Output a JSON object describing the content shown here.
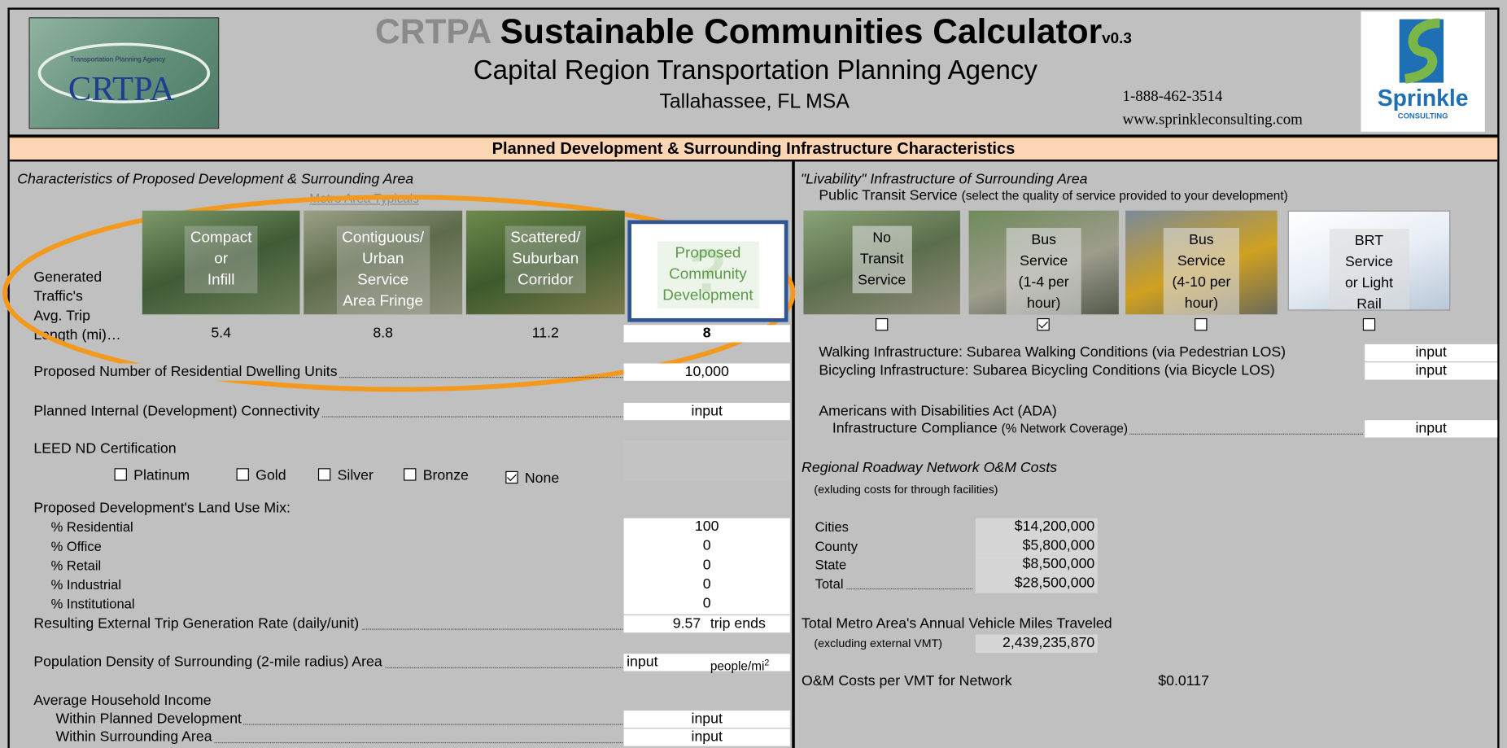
{
  "header": {
    "brand": "CRTPA",
    "title": "Sustainable Communities Calculator",
    "version": "v0.3",
    "agency": "Capital Region Transportation Planning Agency",
    "location": "Tallahassee, FL MSA",
    "phone": "1-888-462-3514",
    "website": "www.sprinkleconsulting.com",
    "logo_left": "CRTPA",
    "logo_left_sub": "Transportation Planning Agency",
    "logo_right": "Sprinkle",
    "logo_right_sub": "CONSULTING"
  },
  "section_title": "Planned Development & Surrounding Infrastructure Characteristics",
  "left": {
    "heading": "Characteristics of Proposed Development & Surrounding Area",
    "metro_label": "Metro Area Typicals",
    "trip_label": "Generated\nTraffic's\nAvg. Trip\nLength (mi)…",
    "scenarios": [
      {
        "label": "Compact\nor\nInfill",
        "value": "5.4"
      },
      {
        "label": "Contiguous/\nUrban Service\nArea Fringe",
        "value": "8.8"
      },
      {
        "label": "Scattered/\nSuburban\nCorridor",
        "value": "11.2"
      },
      {
        "label": "Proposed\nCommunity\nDevelopment",
        "value": "8",
        "icon": "?"
      }
    ],
    "dwelling": {
      "label": "Proposed Number of Residential Dwelling Units",
      "value": "10,000"
    },
    "connectivity": {
      "label": "Planned Internal (Development) Connectivity",
      "value": "input"
    },
    "leed": {
      "label": "LEED ND Certification",
      "options": [
        {
          "label": "Platinum",
          "checked": false
        },
        {
          "label": "Gold",
          "checked": false
        },
        {
          "label": "Silver",
          "checked": false
        },
        {
          "label": "Bronze",
          "checked": false
        },
        {
          "label": "None",
          "checked": true
        }
      ]
    },
    "land_use": {
      "label": "Proposed Development's Land Use Mix:",
      "items": [
        {
          "label": "% Residential",
          "value": "100"
        },
        {
          "label": "% Office",
          "value": "0"
        },
        {
          "label": "% Retail",
          "value": "0"
        },
        {
          "label": "% Industrial",
          "value": "0"
        },
        {
          "label": "% Institutional",
          "value": "0"
        }
      ]
    },
    "trip_rate": {
      "label": "Resulting External Trip Generation Rate (daily/unit)",
      "value": "9.57",
      "unit": "trip ends"
    },
    "density": {
      "label": "Population Density of Surrounding (2-mile radius) Area",
      "value": "input",
      "unit": "people/mi",
      "unit_sup": "2"
    },
    "income": {
      "label": "Average Household Income",
      "items": [
        {
          "label": "Within Planned Development",
          "value": "input"
        },
        {
          "label": "Within Surrounding Area",
          "value": "input"
        }
      ]
    }
  },
  "right": {
    "heading": "\"Livability\" Infrastructure of Surrounding Area",
    "transit_label": "Public Transit Service",
    "transit_note": "(select the quality of service provided to your development)",
    "transit": [
      {
        "label": "No\nTransit\nService",
        "checked": false
      },
      {
        "label": "Bus Service\n(1-4 per hour)",
        "checked": true
      },
      {
        "label": "Bus Service\n(4-10 per hour)",
        "checked": false
      },
      {
        "label": "BRT Service\nor Light Rail",
        "checked": false
      }
    ],
    "walking": {
      "label": "Walking Infrastructure: Subarea Walking Conditions (via Pedestrian LOS)",
      "value": "input"
    },
    "bicycling": {
      "label": "Bicycling Infrastructure: Subarea Bicycling Conditions (via Bicycle LOS)",
      "value": "input"
    },
    "ada": {
      "label": "Americans with Disabilities Act (ADA)",
      "label2": "Infrastructure Compliance",
      "note": "(% Network Coverage)",
      "value": "input"
    },
    "om": {
      "label": "Regional Roadway Network O&M Costs",
      "note": "(exluding costs for through facilities)",
      "items": [
        {
          "label": "Cities",
          "value": "$14,200,000"
        },
        {
          "label": "County",
          "value": "$5,800,000"
        },
        {
          "label": "State",
          "value": "$8,500,000"
        },
        {
          "label": "Total",
          "value": "$28,500,000"
        }
      ]
    },
    "vmt": {
      "label": "Total Metro Area's Annual Vehicle Miles Traveled",
      "note": "(excluding external VMT)",
      "value": "2,439,235,870"
    },
    "cost_per_vmt": {
      "label": "O&M Costs per VMT for Network",
      "value": "$0.0117"
    }
  }
}
